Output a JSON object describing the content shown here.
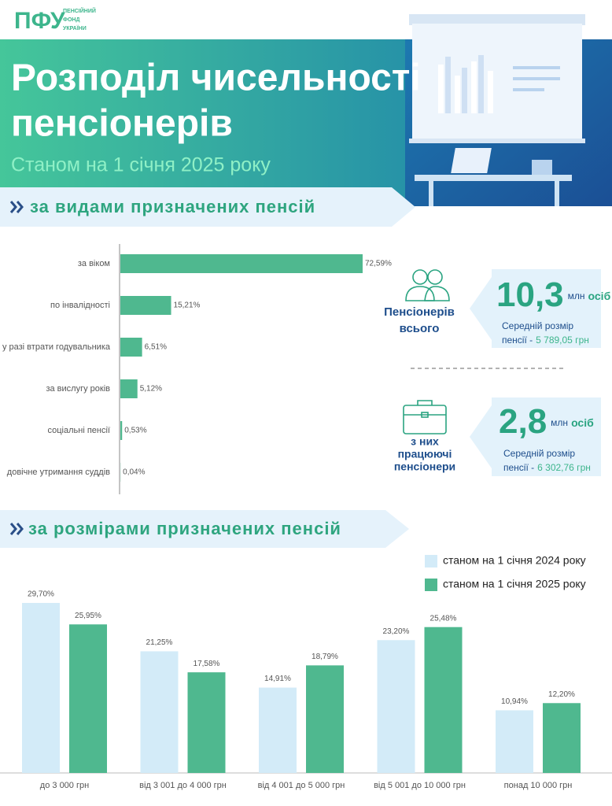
{
  "logo": {
    "mark": "ПФУ",
    "lines": [
      "ПЕНСІЙНИЙ",
      "ФОНД",
      "УКРАЇНИ"
    ]
  },
  "header": {
    "title_lines": [
      "Розподіл чисельності",
      "пенсіонерів"
    ],
    "subtitle": "Станом на 1 січня 2025 року"
  },
  "sections": [
    "за видами призначених пенсій",
    "за розмірами призначених пенсій"
  ],
  "stats": [
    {
      "label_lines": [
        "Пенсіонерів",
        "всього"
      ],
      "value": "10,3",
      "unit": "млн",
      "unit2": "осіб",
      "desc_lines": [
        "Середній розмір",
        "пенсії -"
      ],
      "amount": "5 789,05 грн"
    },
    {
      "label_lines": [
        "з них",
        "працюючі",
        "пенсіонери"
      ],
      "value": "2,8",
      "unit": "млн",
      "unit2": "осіб",
      "desc_lines": [
        "Середній розмір",
        "пенсії -"
      ],
      "amount": "6 302,76 грн"
    }
  ],
  "chart_data": [
    {
      "type": "hbar",
      "categories": [
        "за віком",
        "по інвалідності",
        "у разі втрати годувальника",
        "за вислугу років",
        "соціальні пенсії",
        "довічне утримання суддів"
      ],
      "values": [
        72.59,
        15.21,
        6.51,
        5.12,
        0.53,
        0.04
      ],
      "value_labels": [
        "72,59%",
        "15,21%",
        "6,51%",
        "5,12%",
        "0,53%",
        "0,04%"
      ],
      "color": "#4fb88f"
    },
    {
      "type": "bar",
      "categories": [
        "до 3 000 грн",
        "від 3 001 до 4 000 грн",
        "від 4 001 до 5 000 грн",
        "від 5 001 до 10 000 грн",
        "понад 10 000 грн"
      ],
      "series": [
        {
          "name": "станом на 1 січня 2024 року",
          "color": "#d3ebf8",
          "values": [
            29.7,
            21.25,
            14.91,
            23.2,
            10.94
          ],
          "value_labels": [
            "29,70%",
            "21,25%",
            "14,91%",
            "23,20%",
            "10,94%"
          ]
        },
        {
          "name": "станом на 1 січня 2025 року",
          "color": "#4fb88f",
          "values": [
            25.95,
            17.58,
            18.79,
            25.48,
            12.2
          ],
          "value_labels": [
            "25,95%",
            "17,58%",
            "18,79%",
            "25,48%",
            "12,20%"
          ]
        }
      ],
      "legend": "top-right"
    }
  ]
}
